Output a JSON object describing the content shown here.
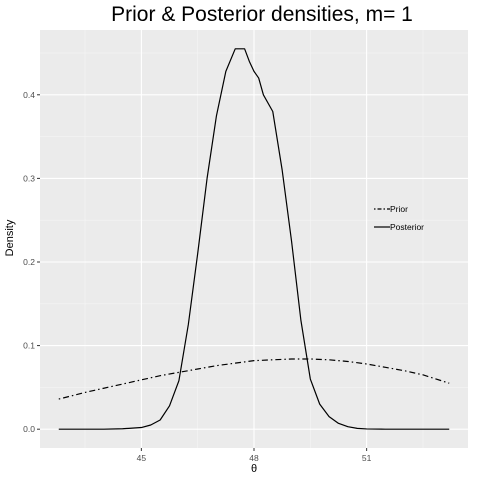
{
  "chart_data": {
    "type": "line",
    "title": "Prior & Posterior densities, m= 1",
    "xlabel": "θ",
    "ylabel": "Density",
    "xlim": [
      42.3,
      53.7
    ],
    "ylim": [
      -0.0225,
      0.4775
    ],
    "x_ticks": [
      45,
      48,
      51
    ],
    "x_minor_ticks": [
      43.5,
      46.5,
      49.5,
      52.5
    ],
    "y_ticks": [
      0.0,
      0.1,
      0.2,
      0.3,
      0.4
    ],
    "y_minor_ticks": [
      0.05,
      0.15,
      0.25,
      0.35,
      0.45
    ],
    "grid": true,
    "legend_position": "right",
    "series": [
      {
        "name": "Prior",
        "dash": "dotdash",
        "x": [
          42.8,
          43.5,
          44.0,
          44.5,
          45.0,
          45.5,
          46.0,
          46.5,
          47.0,
          47.5,
          48.0,
          48.5,
          49.0,
          49.5,
          50.0,
          50.5,
          51.0,
          51.5,
          52.0,
          52.5,
          53.2
        ],
        "y": [
          0.036,
          0.044,
          0.049,
          0.054,
          0.059,
          0.064,
          0.068,
          0.072,
          0.076,
          0.079,
          0.082,
          0.083,
          0.084,
          0.084,
          0.083,
          0.081,
          0.078,
          0.074,
          0.07,
          0.065,
          0.055
        ]
      },
      {
        "name": "Posterior",
        "dash": "solid",
        "x": [
          42.8,
          44.0,
          44.5,
          45.0,
          45.25,
          45.5,
          45.75,
          46.0,
          46.25,
          46.5,
          46.75,
          47.0,
          47.25,
          47.5,
          47.75,
          47.875,
          48.0,
          48.125,
          48.25,
          48.5,
          48.75,
          49.0,
          49.25,
          49.5,
          49.75,
          50.0,
          50.25,
          50.5,
          50.75,
          51.0,
          51.5,
          53.2
        ],
        "y": [
          0.0,
          0.0,
          0.0005,
          0.002,
          0.005,
          0.011,
          0.028,
          0.058,
          0.125,
          0.21,
          0.3,
          0.375,
          0.428,
          0.455,
          0.455,
          0.44,
          0.428,
          0.42,
          0.4,
          0.38,
          0.31,
          0.225,
          0.13,
          0.06,
          0.03,
          0.015,
          0.007,
          0.003,
          0.001,
          0.0003,
          0.0,
          0.0
        ]
      }
    ]
  }
}
